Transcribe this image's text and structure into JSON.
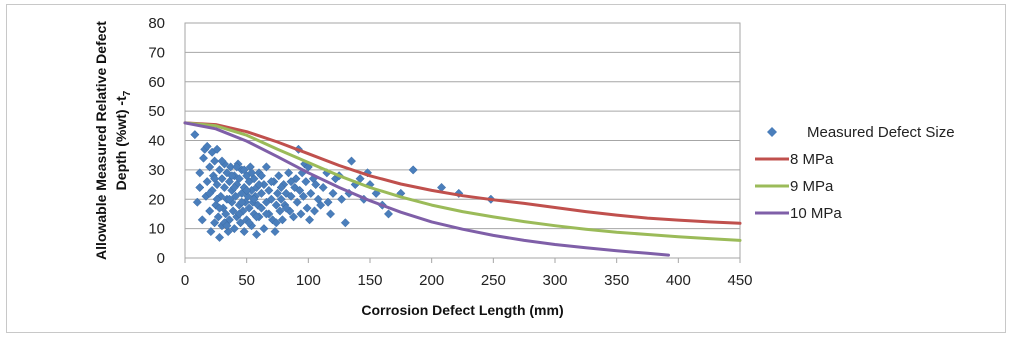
{
  "chart_data": {
    "type": "scatter",
    "xlabel": "Corrosion Defect Length (mm)",
    "ylabel_line1": "Allowable Measured Relative Defect",
    "ylabel_line2": "Depth (%wt) -t",
    "ylabel_subscript": "7",
    "xlim": [
      0,
      450
    ],
    "ylim": [
      0,
      80
    ],
    "x_ticks": [
      "0",
      "50",
      "100",
      "150",
      "200",
      "250",
      "300",
      "350",
      "400",
      "450"
    ],
    "y_ticks": [
      "0",
      "10",
      "20",
      "30",
      "40",
      "50",
      "60",
      "70",
      "80"
    ],
    "grid": "horizontal",
    "legend_position": "right",
    "series": [
      {
        "name": "Measured Defect Size",
        "kind": "scatter",
        "color": "#4a7ebb",
        "points": [
          [
            8,
            42
          ],
          [
            10,
            19
          ],
          [
            12,
            24
          ],
          [
            12,
            29
          ],
          [
            14,
            13
          ],
          [
            15,
            34
          ],
          [
            16,
            37
          ],
          [
            17,
            21
          ],
          [
            18,
            38
          ],
          [
            18,
            26
          ],
          [
            20,
            16
          ],
          [
            20,
            31
          ],
          [
            21,
            9
          ],
          [
            22,
            23
          ],
          [
            22,
            36
          ],
          [
            23,
            28
          ],
          [
            24,
            12
          ],
          [
            24,
            33
          ],
          [
            25,
            18
          ],
          [
            26,
            37
          ],
          [
            26,
            25
          ],
          [
            27,
            14
          ],
          [
            28,
            30
          ],
          [
            28,
            7
          ],
          [
            29,
            21
          ],
          [
            30,
            27
          ],
          [
            30,
            11
          ],
          [
            31,
            17
          ],
          [
            32,
            24
          ],
          [
            32,
            32
          ],
          [
            33,
            15
          ],
          [
            34,
            29
          ],
          [
            34,
            20
          ],
          [
            35,
            9
          ],
          [
            36,
            26
          ],
          [
            36,
            13
          ],
          [
            37,
            31
          ],
          [
            38,
            19
          ],
          [
            38,
            23
          ],
          [
            39,
            16
          ],
          [
            40,
            28
          ],
          [
            40,
            10
          ],
          [
            41,
            21
          ],
          [
            42,
            25
          ],
          [
            42,
            14
          ],
          [
            43,
            32
          ],
          [
            44,
            18
          ],
          [
            44,
            27
          ],
          [
            45,
            12
          ],
          [
            46,
            22
          ],
          [
            46,
            30
          ],
          [
            47,
            16
          ],
          [
            48,
            24
          ],
          [
            48,
            9
          ],
          [
            49,
            19
          ],
          [
            50,
            28
          ],
          [
            50,
            13
          ],
          [
            51,
            21
          ],
          [
            52,
            26
          ],
          [
            52,
            17
          ],
          [
            53,
            31
          ],
          [
            54,
            11
          ],
          [
            54,
            23
          ],
          [
            55,
            19
          ],
          [
            56,
            15
          ],
          [
            56,
            27
          ],
          [
            57,
            21
          ],
          [
            58,
            8
          ],
          [
            58,
            24
          ],
          [
            59,
            18
          ],
          [
            60,
            29
          ],
          [
            60,
            14
          ],
          [
            62,
            22
          ],
          [
            62,
            17
          ],
          [
            64,
            10
          ],
          [
            64,
            25
          ],
          [
            66,
            19
          ],
          [
            66,
            31
          ],
          [
            68,
            15
          ],
          [
            68,
            23
          ],
          [
            70,
            20
          ],
          [
            71,
            13
          ],
          [
            72,
            26
          ],
          [
            73,
            9
          ],
          [
            74,
            18
          ],
          [
            75,
            22
          ],
          [
            76,
            28
          ],
          [
            77,
            16
          ],
          [
            78,
            20
          ],
          [
            79,
            13
          ],
          [
            80,
            25
          ],
          [
            81,
            18
          ],
          [
            82,
            22
          ],
          [
            84,
            29
          ],
          [
            85,
            16
          ],
          [
            86,
            21
          ],
          [
            88,
            14
          ],
          [
            89,
            24
          ],
          [
            90,
            27
          ],
          [
            91,
            19
          ],
          [
            92,
            37
          ],
          [
            93,
            23
          ],
          [
            94,
            15
          ],
          [
            95,
            29
          ],
          [
            96,
            21
          ],
          [
            97,
            32
          ],
          [
            98,
            26
          ],
          [
            99,
            17
          ],
          [
            100,
            31
          ],
          [
            101,
            13
          ],
          [
            102,
            22
          ],
          [
            104,
            27
          ],
          [
            105,
            16
          ],
          [
            106,
            25
          ],
          [
            108,
            20
          ],
          [
            110,
            18
          ],
          [
            112,
            24
          ],
          [
            115,
            29
          ],
          [
            116,
            19
          ],
          [
            118,
            15
          ],
          [
            120,
            22
          ],
          [
            122,
            27
          ],
          [
            125,
            28
          ],
          [
            127,
            20
          ],
          [
            130,
            12
          ],
          [
            133,
            22
          ],
          [
            135,
            33
          ],
          [
            138,
            25
          ],
          [
            142,
            27
          ],
          [
            145,
            20
          ],
          [
            148,
            29
          ],
          [
            150,
            25
          ],
          [
            155,
            22
          ],
          [
            160,
            18
          ],
          [
            165,
            15
          ],
          [
            175,
            22
          ],
          [
            185,
            30
          ],
          [
            208,
            24
          ],
          [
            222,
            22
          ],
          [
            248,
            20
          ],
          [
            20,
            22
          ],
          [
            24,
            27
          ],
          [
            28,
            17
          ],
          [
            32,
            12
          ],
          [
            36,
            20
          ],
          [
            40,
            24
          ],
          [
            44,
            15
          ],
          [
            48,
            30
          ],
          [
            52,
            12
          ],
          [
            56,
            20
          ],
          [
            60,
            25
          ],
          [
            26,
            20
          ],
          [
            30,
            33
          ],
          [
            34,
            11
          ],
          [
            38,
            28
          ],
          [
            42,
            31
          ],
          [
            46,
            19
          ],
          [
            50,
            23
          ],
          [
            54,
            29
          ],
          [
            58,
            14
          ],
          [
            62,
            28
          ],
          [
            66,
            15
          ],
          [
            70,
            26
          ],
          [
            74,
            12
          ],
          [
            78,
            24
          ],
          [
            82,
            17
          ],
          [
            86,
            26
          ]
        ]
      },
      {
        "name": "8 MPa",
        "kind": "line",
        "color": "#c0504d",
        "points": [
          [
            0,
            46
          ],
          [
            25,
            45.4
          ],
          [
            50,
            43
          ],
          [
            75,
            39.5
          ],
          [
            100,
            35.5
          ],
          [
            125,
            31.5
          ],
          [
            150,
            28
          ],
          [
            175,
            25.2
          ],
          [
            200,
            23
          ],
          [
            225,
            21.2
          ],
          [
            250,
            19.8
          ],
          [
            275,
            18.6
          ],
          [
            300,
            17.2
          ],
          [
            325,
            15.8
          ],
          [
            350,
            14.6
          ],
          [
            375,
            13.6
          ],
          [
            400,
            12.9
          ],
          [
            425,
            12.3
          ],
          [
            450,
            11.8
          ]
        ]
      },
      {
        "name": "9 MPa",
        "kind": "line",
        "color": "#9bbb59",
        "points": [
          [
            0,
            46
          ],
          [
            25,
            45
          ],
          [
            50,
            41.8
          ],
          [
            75,
            37
          ],
          [
            100,
            32.5
          ],
          [
            125,
            28
          ],
          [
            150,
            24
          ],
          [
            175,
            20.8
          ],
          [
            200,
            18
          ],
          [
            225,
            15.8
          ],
          [
            250,
            14
          ],
          [
            275,
            12.4
          ],
          [
            300,
            11
          ],
          [
            325,
            9.8
          ],
          [
            350,
            8.8
          ],
          [
            375,
            8
          ],
          [
            400,
            7.2
          ],
          [
            425,
            6.6
          ],
          [
            450,
            6
          ]
        ]
      },
      {
        "name": "10 MPa",
        "kind": "line",
        "color": "#7f5fa8",
        "points": [
          [
            0,
            46
          ],
          [
            25,
            44
          ],
          [
            50,
            39.8
          ],
          [
            75,
            34.5
          ],
          [
            100,
            29
          ],
          [
            125,
            24
          ],
          [
            150,
            19.5
          ],
          [
            175,
            15.6
          ],
          [
            200,
            12.3
          ],
          [
            225,
            9.8
          ],
          [
            250,
            7.7
          ],
          [
            275,
            6
          ],
          [
            300,
            4.6
          ],
          [
            325,
            3.5
          ],
          [
            350,
            2.5
          ],
          [
            375,
            1.6
          ],
          [
            392,
            1
          ]
        ]
      }
    ]
  }
}
